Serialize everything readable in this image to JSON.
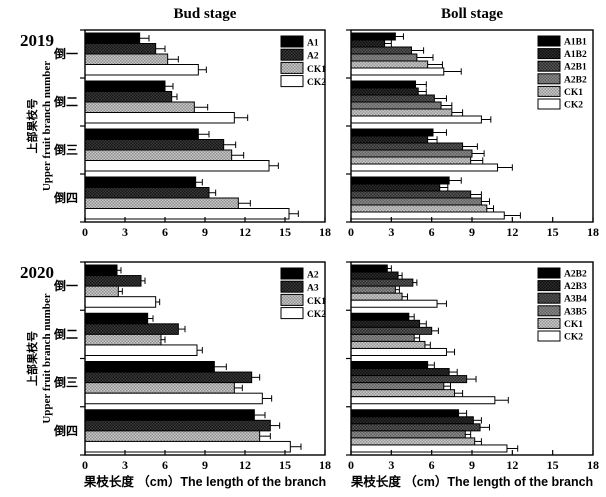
{
  "figure": {
    "titles": {
      "left": "Bud stage",
      "right": "Boll stage"
    },
    "years": [
      "2019",
      "2020"
    ],
    "ylabel_cn": "上部果枝号",
    "ylabel_en": "Upper fruit branch number",
    "xlabel": "果枝长度 （cm）The length of the branch",
    "colors": {
      "black": "#000000",
      "white": "#ffffff",
      "axis": "#000000"
    }
  },
  "chart_data": [
    {
      "id": "bud-2019",
      "type": "bar",
      "orientation": "horizontal",
      "title": "Bud stage",
      "year": "2019",
      "row": "top",
      "col": "left",
      "categories": [
        "倒一",
        "倒二",
        "倒三",
        "倒四"
      ],
      "xlim": [
        0,
        18
      ],
      "xticks": [
        0,
        3,
        6,
        9,
        12,
        15,
        18
      ],
      "legend_position": "top-right",
      "grid": false,
      "series": [
        {
          "name": "A1",
          "fill": "#000000",
          "values": [
            4.1,
            6.0,
            8.5,
            8.3
          ],
          "errors": [
            0.7,
            0.6,
            0.8,
            0.5
          ]
        },
        {
          "name": "A2",
          "fill": "#3a3a3a",
          "fill2": "#161616",
          "values": [
            5.3,
            6.5,
            10.4,
            9.3
          ],
          "errors": [
            0.7,
            0.4,
            0.9,
            0.5
          ]
        },
        {
          "name": "CK1",
          "fill": "#c8c8c8",
          "fill2": "#8f8f8f",
          "values": [
            6.2,
            8.2,
            11.0,
            11.5
          ],
          "errors": [
            0.8,
            1.0,
            0.9,
            0.9
          ]
        },
        {
          "name": "CK2",
          "fill": "#ffffff",
          "values": [
            8.5,
            11.2,
            13.8,
            15.3
          ],
          "errors": [
            0.6,
            1.0,
            0.7,
            0.7
          ]
        }
      ]
    },
    {
      "id": "boll-2019",
      "type": "bar",
      "orientation": "horizontal",
      "title": "Boll stage",
      "year": "2019",
      "row": "top",
      "col": "right",
      "categories": [
        "倒一",
        "倒二",
        "倒三",
        "倒四"
      ],
      "xlim": [
        0,
        18
      ],
      "xticks": [
        0,
        3,
        6,
        9,
        12,
        15,
        18
      ],
      "legend_position": "top-right",
      "grid": false,
      "series": [
        {
          "name": "A1B1",
          "fill": "#000000",
          "values": [
            3.3,
            4.8,
            6.1,
            7.3
          ],
          "errors": [
            0.6,
            0.8,
            1.0,
            0.9
          ]
        },
        {
          "name": "A1B2",
          "fill": "#2e2e2e",
          "fill2": "#101010",
          "values": [
            2.5,
            5.0,
            5.7,
            6.6
          ],
          "errors": [
            0.5,
            0.6,
            0.7,
            0.6
          ]
        },
        {
          "name": "A2B1",
          "fill": "#565656",
          "fill2": "#2e2e2e",
          "values": [
            4.5,
            6.2,
            8.3,
            8.9
          ],
          "errors": [
            0.9,
            0.9,
            1.1,
            0.8
          ]
        },
        {
          "name": "A2B2",
          "fill": "#8a8a8a",
          "fill2": "#616161",
          "values": [
            4.9,
            6.7,
            9.0,
            9.7
          ],
          "errors": [
            1.2,
            0.8,
            0.9,
            0.6
          ]
        },
        {
          "name": "CK1",
          "fill": "#c8c8c8",
          "fill2": "#979797",
          "values": [
            5.7,
            7.5,
            8.9,
            10.1
          ],
          "errors": [
            1.1,
            0.8,
            0.9,
            0.5
          ]
        },
        {
          "name": "CK2",
          "fill": "#ffffff",
          "values": [
            6.9,
            9.7,
            10.9,
            11.4
          ],
          "errors": [
            1.3,
            0.7,
            1.1,
            1.2
          ]
        }
      ]
    },
    {
      "id": "bud-2020",
      "type": "bar",
      "orientation": "horizontal",
      "title": "Bud stage",
      "year": "2020",
      "row": "bottom",
      "col": "left",
      "categories": [
        "倒一",
        "倒二",
        "倒三",
        "倒四"
      ],
      "xlim": [
        0,
        18
      ],
      "xticks": [
        0,
        3,
        6,
        9,
        12,
        15,
        18
      ],
      "legend_position": "top-right",
      "grid": false,
      "series": [
        {
          "name": "A2",
          "fill": "#000000",
          "values": [
            2.4,
            4.7,
            9.7,
            12.7
          ],
          "errors": [
            0.3,
            0.4,
            0.9,
            0.8
          ]
        },
        {
          "name": "A3",
          "fill": "#3a3a3a",
          "fill2": "#161616",
          "values": [
            4.2,
            7.0,
            12.5,
            13.9
          ],
          "errors": [
            0.3,
            0.5,
            0.6,
            0.7
          ]
        },
        {
          "name": "CK1",
          "fill": "#c8c8c8",
          "fill2": "#8f8f8f",
          "values": [
            2.5,
            5.7,
            11.2,
            13.1
          ],
          "errors": [
            0.3,
            0.3,
            0.6,
            0.8
          ]
        },
        {
          "name": "CK2",
          "fill": "#ffffff",
          "values": [
            5.3,
            8.4,
            13.3,
            15.4
          ],
          "errors": [
            0.3,
            0.4,
            0.7,
            0.8
          ]
        }
      ]
    },
    {
      "id": "boll-2020",
      "type": "bar",
      "orientation": "horizontal",
      "title": "Boll stage",
      "year": "2020",
      "row": "bottom",
      "col": "right",
      "categories": [
        "倒一",
        "倒二",
        "倒三",
        "倒四"
      ],
      "xlim": [
        0,
        18
      ],
      "xticks": [
        0,
        3,
        6,
        9,
        12,
        15,
        18
      ],
      "legend_position": "top-right",
      "grid": false,
      "series": [
        {
          "name": "A2B2",
          "fill": "#000000",
          "values": [
            2.7,
            4.3,
            5.7,
            8.0
          ],
          "errors": [
            0.3,
            0.4,
            0.5,
            0.6
          ]
        },
        {
          "name": "A2B3",
          "fill": "#2e2e2e",
          "fill2": "#101010",
          "values": [
            3.5,
            5.1,
            7.3,
            9.1
          ],
          "errors": [
            0.3,
            0.5,
            0.6,
            0.6
          ]
        },
        {
          "name": "A3B4",
          "fill": "#565656",
          "fill2": "#2e2e2e",
          "values": [
            4.6,
            6.0,
            8.6,
            9.6
          ],
          "errors": [
            0.3,
            0.5,
            0.7,
            0.7
          ]
        },
        {
          "name": "A3B5",
          "fill": "#8a8a8a",
          "fill2": "#616161",
          "values": [
            3.3,
            4.7,
            6.9,
            8.5
          ],
          "errors": [
            0.3,
            0.4,
            0.5,
            0.4
          ]
        },
        {
          "name": "CK1",
          "fill": "#c8c8c8",
          "fill2": "#979797",
          "values": [
            3.8,
            5.5,
            7.7,
            9.2
          ],
          "errors": [
            0.4,
            0.4,
            0.6,
            0.5
          ]
        },
        {
          "name": "CK2",
          "fill": "#ffffff",
          "values": [
            6.4,
            7.1,
            10.7,
            11.6
          ],
          "errors": [
            0.7,
            0.6,
            1.0,
            0.8
          ]
        }
      ]
    }
  ]
}
